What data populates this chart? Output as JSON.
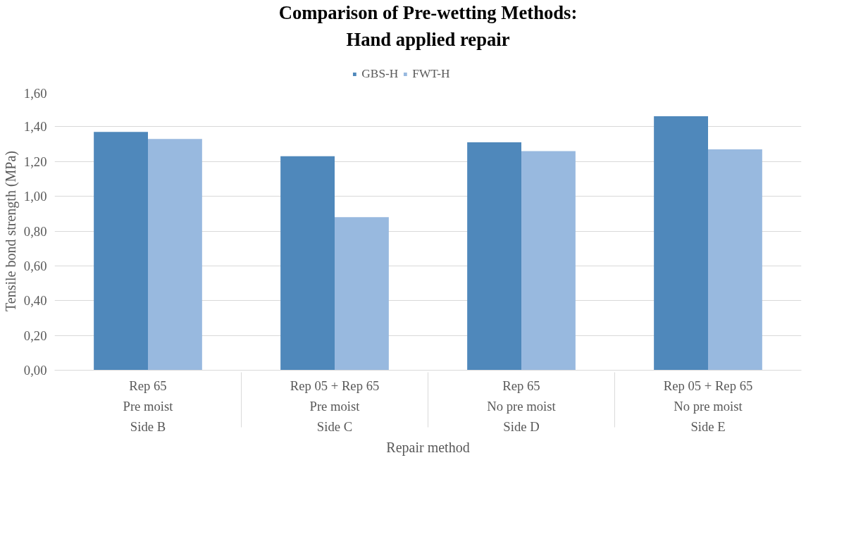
{
  "chart_data": {
    "type": "bar",
    "title": "Comparison of Pre-wetting Methods:\nHand applied repair",
    "xlabel": "Repair method",
    "ylabel": "Tensile bond strength (MPa)",
    "categories": [
      "Rep 65\nPre moist\nSide B",
      "Rep 05 + Rep 65\nPre moist\nSide C",
      "Rep 65\nNo pre moist\nSide D",
      "Rep 05 + Rep 65\nNo pre moist\nSide E"
    ],
    "series": [
      {
        "name": "GBS-H",
        "color": "#4f88bb",
        "values": [
          1.37,
          1.23,
          1.31,
          1.46
        ]
      },
      {
        "name": "FWT-H",
        "color": "#98b9df",
        "values": [
          1.33,
          0.88,
          1.26,
          1.27
        ]
      }
    ],
    "ylim": [
      0,
      1.6
    ],
    "yticks": [
      {
        "value": 0,
        "label": "0,00"
      },
      {
        "value": 0.2,
        "label": "0,20"
      },
      {
        "value": 0.4,
        "label": "0,40"
      },
      {
        "value": 0.6,
        "label": "0,60"
      },
      {
        "value": 0.8,
        "label": "0,80"
      },
      {
        "value": 1.0,
        "label": "1,00"
      },
      {
        "value": 1.2,
        "label": "1,20"
      },
      {
        "value": 1.4,
        "label": "1,40"
      },
      {
        "value": 1.6,
        "label": "1,60"
      }
    ],
    "grid": "y",
    "legend": "top"
  }
}
